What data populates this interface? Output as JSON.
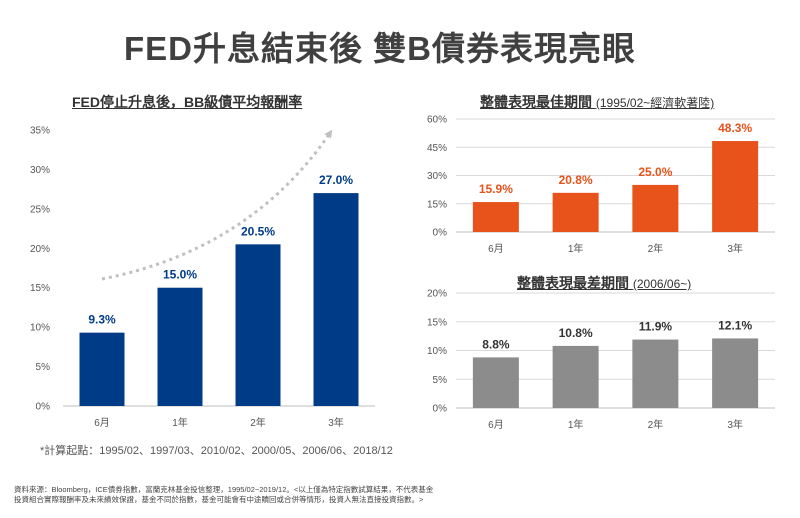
{
  "title": "FED升息結束後 雙B債券表現亮眼",
  "colors": {
    "navy": "#003B87",
    "orange": "#E8521B",
    "gray": "#8C8C8C",
    "arrow": "#C0C0C0",
    "grid": "#D9D9D9"
  },
  "chart_data": [
    {
      "id": "left",
      "type": "bar",
      "title": "FED停止升息後，BB級債平均報酬率",
      "subtitle": "",
      "categories": [
        "6月",
        "1年",
        "2年",
        "3年"
      ],
      "values": [
        9.3,
        15.0,
        20.5,
        27.0
      ],
      "value_labels": [
        "9.3%",
        "15.0%",
        "20.5%",
        "27.0%"
      ],
      "yticks": [
        "0%",
        "5%",
        "10%",
        "15%",
        "20%",
        "25%",
        "30%",
        "35%"
      ],
      "ylim": [
        0,
        35
      ],
      "grid": false,
      "color": "navy"
    },
    {
      "id": "topright",
      "type": "bar",
      "title": "整體表現最佳期間",
      "subtitle": "(1995/02~經濟軟著陸)",
      "categories": [
        "6月",
        "1年",
        "2年",
        "3年"
      ],
      "values": [
        15.9,
        20.8,
        25.0,
        48.3
      ],
      "value_labels": [
        "15.9%",
        "20.8%",
        "25.0%",
        "48.3%"
      ],
      "yticks": [
        "0%",
        "15%",
        "30%",
        "45%",
        "60%"
      ],
      "ylim": [
        0,
        60
      ],
      "grid": true,
      "color": "orange"
    },
    {
      "id": "bottomright",
      "type": "bar",
      "title": "整體表現最差期間",
      "subtitle": "(2006/06~)",
      "categories": [
        "6月",
        "1年",
        "2年",
        "3年"
      ],
      "values": [
        8.8,
        10.8,
        11.9,
        12.1
      ],
      "value_labels": [
        "8.8%",
        "10.8%",
        "11.9%",
        "12.1%"
      ],
      "yticks": [
        "0%",
        "5%",
        "10%",
        "15%",
        "20%"
      ],
      "ylim": [
        0,
        20
      ],
      "grid": true,
      "color": "gray"
    }
  ],
  "footnote": "*計算起點：1995/02、1997/03、2010/02、2000/05、2006/06、2018/12",
  "source_line1": "資料來源：Bloomberg，ICE債券指數，富蘭克林基金投信整理，1995/02~2019/12。<以上僅為特定指數試算結果，不代表基金",
  "source_line2": "投資組合實際報酬率及未來績效保證，基金不同於指數，基金可能會有中途贖回或合併等情形，投資人無法直接投資指數。>"
}
